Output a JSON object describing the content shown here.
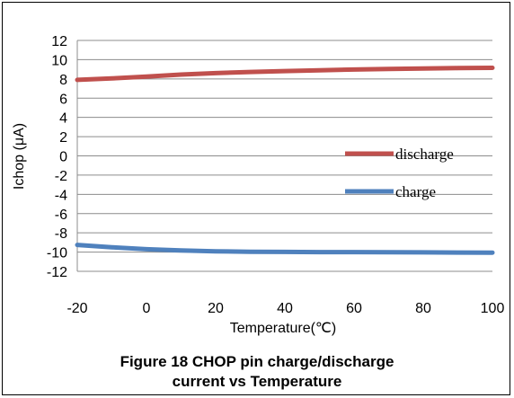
{
  "caption": {
    "line1": "Figure 18  CHOP pin charge/discharge",
    "line2": "current vs Temperature"
  },
  "chart_data": {
    "type": "line",
    "xlabel": "Temperature(℃)",
    "ylabel": "Ichop (μA)",
    "xlim": [
      -20,
      100
    ],
    "ylim": [
      -12,
      12
    ],
    "x_ticks": [
      "-20",
      "0",
      "20",
      "40",
      "60",
      "80",
      "100"
    ],
    "y_ticks": [
      "12",
      "10",
      "8",
      "6",
      "4",
      "2",
      "0",
      "-2",
      "-4",
      "-6",
      "-8",
      "-10",
      "-12"
    ],
    "grid": "horizontal",
    "legend_position": "right",
    "series": [
      {
        "name": "discharge",
        "color": "#c0504d",
        "x": [
          -20,
          -10,
          0,
          10,
          20,
          30,
          40,
          50,
          60,
          70,
          80,
          90,
          100
        ],
        "y": [
          7.9,
          8.05,
          8.25,
          8.45,
          8.6,
          8.72,
          8.82,
          8.9,
          8.97,
          9.03,
          9.08,
          9.12,
          9.15
        ]
      },
      {
        "name": "charge",
        "color": "#4f81bd",
        "x": [
          -20,
          -10,
          0,
          10,
          20,
          30,
          40,
          50,
          60,
          70,
          80,
          90,
          100
        ],
        "y": [
          -9.25,
          -9.5,
          -9.7,
          -9.83,
          -9.92,
          -9.96,
          -9.98,
          -10.0,
          -10.0,
          -10.02,
          -10.03,
          -10.05,
          -10.06
        ]
      }
    ]
  }
}
